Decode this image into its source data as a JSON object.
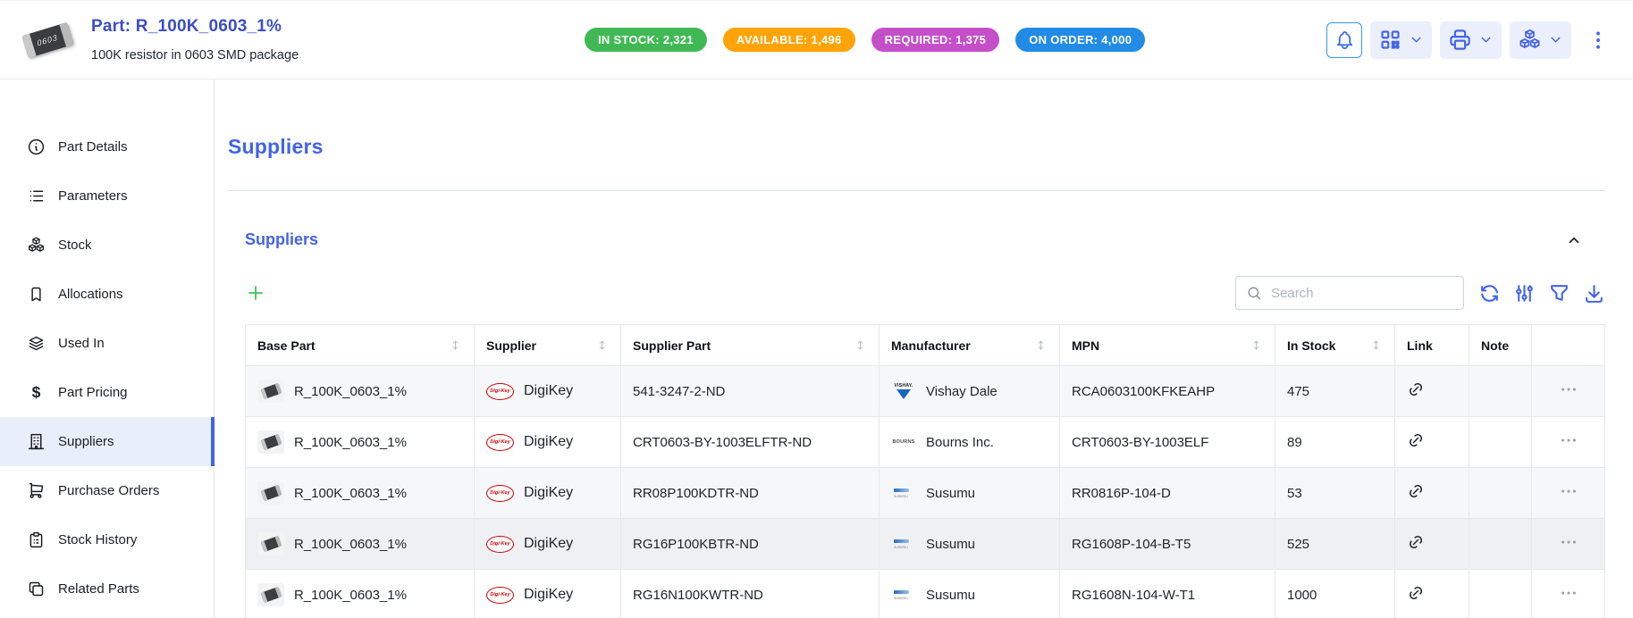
{
  "header": {
    "part_title": "Part: R_100K_0603_1%",
    "part_description": "100K resistor in 0603 SMD package",
    "thumb_label": "0603",
    "badges": [
      {
        "label": "IN STOCK: 2,321",
        "color": "#40b955"
      },
      {
        "label": "AVAILABLE: 1,496",
        "color": "#ffa408"
      },
      {
        "label": "REQUIRED: 1,375",
        "color": "#c44fc9"
      },
      {
        "label": "ON ORDER: 4,000",
        "color": "#228be6"
      }
    ],
    "action_icons": [
      "bell-icon",
      "qrcode-icon",
      "printer-icon",
      "packages-icon",
      "dots-vertical-icon"
    ]
  },
  "sidebar": {
    "items": [
      {
        "label": "Part Details",
        "icon": "info-circle-icon",
        "active": false
      },
      {
        "label": "Parameters",
        "icon": "list-icon",
        "active": false
      },
      {
        "label": "Stock",
        "icon": "packages-icon",
        "active": false
      },
      {
        "label": "Allocations",
        "icon": "bookmark-icon",
        "active": false
      },
      {
        "label": "Used In",
        "icon": "stack-icon",
        "active": false
      },
      {
        "label": "Part Pricing",
        "icon": "dollar-icon",
        "active": false
      },
      {
        "label": "Suppliers",
        "icon": "building-icon",
        "active": true
      },
      {
        "label": "Purchase Orders",
        "icon": "cart-icon",
        "active": false
      },
      {
        "label": "Stock History",
        "icon": "clipboard-icon",
        "active": false
      },
      {
        "label": "Related Parts",
        "icon": "copy-icon",
        "active": false
      }
    ]
  },
  "main": {
    "page_title": "Suppliers",
    "panel": {
      "title": "Suppliers",
      "search_placeholder": "Search",
      "table": {
        "columns": [
          {
            "label": "Base Part",
            "sortable": true
          },
          {
            "label": "Supplier",
            "sortable": true
          },
          {
            "label": "Supplier Part",
            "sortable": true
          },
          {
            "label": "Manufacturer",
            "sortable": true
          },
          {
            "label": "MPN",
            "sortable": true
          },
          {
            "label": "In Stock",
            "sortable": true
          },
          {
            "label": "Link",
            "sortable": false
          },
          {
            "label": "Note",
            "sortable": false
          },
          {
            "label": "",
            "sortable": false
          }
        ],
        "rows": [
          {
            "base_part": "R_100K_0603_1%",
            "supplier": "DigiKey",
            "supplier_part": "541-3247-2-ND",
            "manufacturer": "Vishay Dale",
            "manufacturer_logo": "vishay",
            "mpn": "RCA0603100KFKEAHP",
            "in_stock": "475",
            "note": "",
            "has_link": true,
            "shaded": true,
            "hovered": false
          },
          {
            "base_part": "R_100K_0603_1%",
            "supplier": "DigiKey",
            "supplier_part": "CRT0603-BY-1003ELFTR-ND",
            "manufacturer": "Bourns Inc.",
            "manufacturer_logo": "bourns",
            "mpn": "CRT0603-BY-1003ELF",
            "in_stock": "89",
            "note": "",
            "has_link": true,
            "shaded": false,
            "hovered": false
          },
          {
            "base_part": "R_100K_0603_1%",
            "supplier": "DigiKey",
            "supplier_part": "RR08P100KDTR-ND",
            "manufacturer": "Susumu",
            "manufacturer_logo": "susumu",
            "mpn": "RR0816P-104-D",
            "in_stock": "53",
            "note": "",
            "has_link": true,
            "shaded": true,
            "hovered": false
          },
          {
            "base_part": "R_100K_0603_1%",
            "supplier": "DigiKey",
            "supplier_part": "RG16P100KBTR-ND",
            "manufacturer": "Susumu",
            "manufacturer_logo": "susumu",
            "mpn": "RG1608P-104-B-T5",
            "in_stock": "525",
            "note": "",
            "has_link": true,
            "shaded": false,
            "hovered": true
          },
          {
            "base_part": "R_100K_0603_1%",
            "supplier": "DigiKey",
            "supplier_part": "RG16N100KWTR-ND",
            "manufacturer": "Susumu",
            "manufacturer_logo": "susumu",
            "mpn": "RG1608N-104-W-T1",
            "in_stock": "1000",
            "note": "",
            "has_link": true,
            "shaded": false,
            "hovered": false
          }
        ]
      }
    }
  }
}
